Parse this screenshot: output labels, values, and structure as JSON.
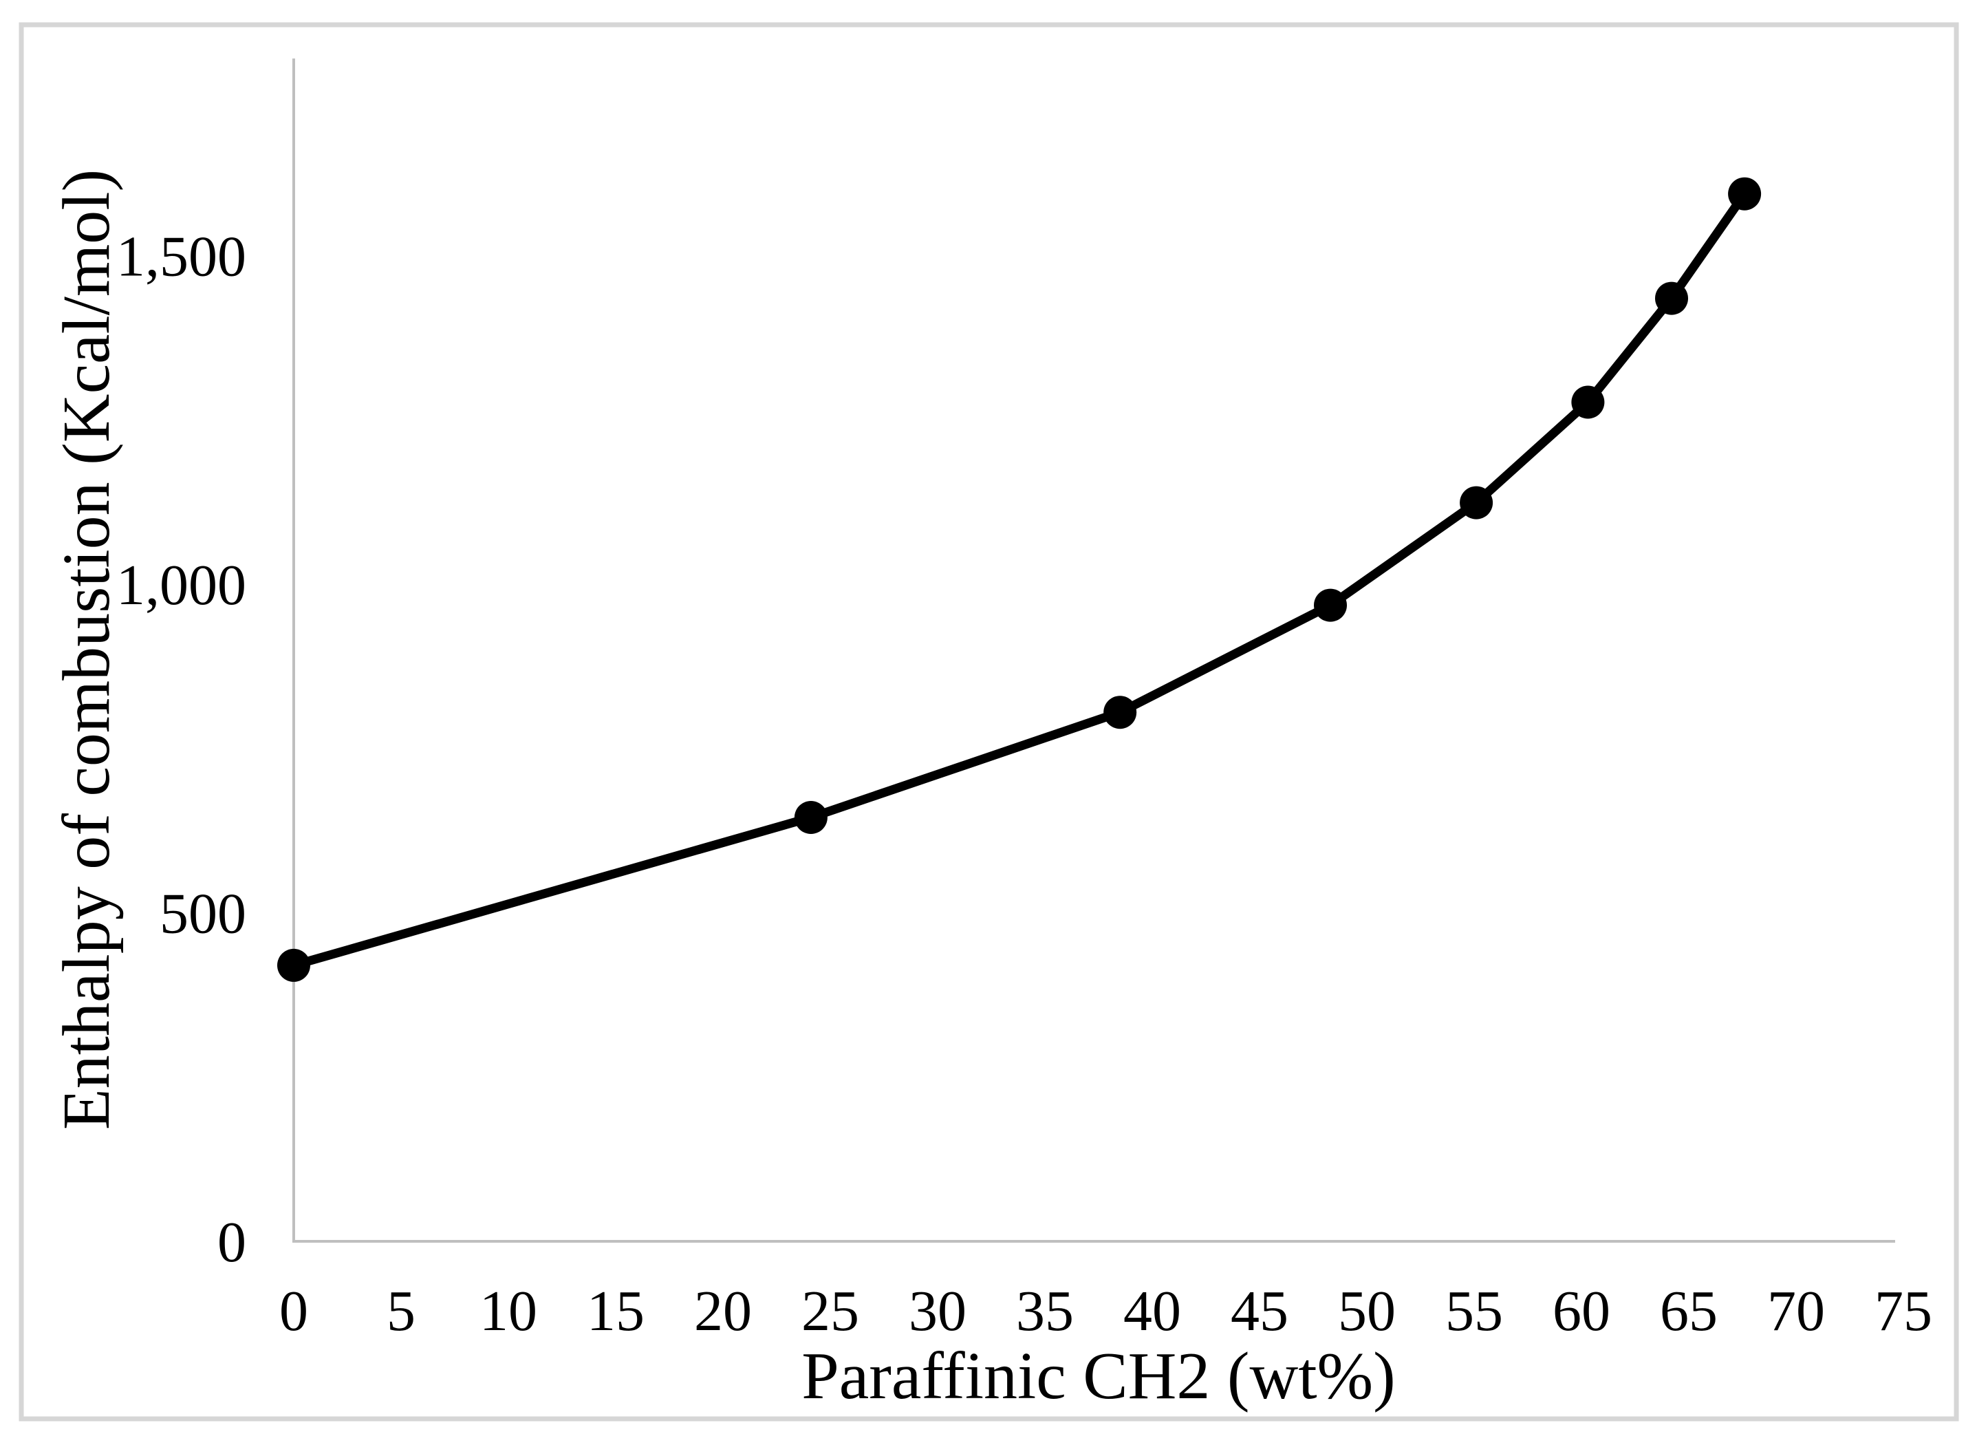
{
  "chart_data": {
    "type": "line",
    "title": "",
    "xlabel": "Paraffinic CH2 (wt%)",
    "ylabel": "Enthalpy of combustion (Kcal/mol)",
    "series": [
      {
        "name": "Enthalpy of combustion",
        "x": [
          0,
          24.1,
          38.5,
          48.3,
          55.1,
          60.3,
          64.2,
          67.6
        ],
        "y": [
          420,
          645,
          805,
          968,
          1124,
          1277,
          1435,
          1594
        ],
        "marker": "circle"
      }
    ],
    "xlim": [
      0,
      75
    ],
    "ylim": [
      0,
      1800
    ],
    "x_ticks": [
      0,
      5,
      10,
      15,
      20,
      25,
      30,
      35,
      40,
      45,
      50,
      55,
      60,
      65,
      70,
      75
    ],
    "x_tick_labels": [
      "0",
      "5",
      "10",
      "15",
      "20",
      "25",
      "30",
      "35",
      "40",
      "45",
      "50",
      "55",
      "60",
      "65",
      "70",
      "75"
    ],
    "y_ticks": [
      0,
      500,
      1000,
      1500
    ],
    "y_tick_labels": [
      "0",
      "500",
      "1,000",
      "1,500"
    ],
    "grid": false,
    "legend": null
  },
  "colors": {
    "background": "#FFFFFF",
    "axis": "#BFBFBF",
    "frame_border": "#D6D6D6",
    "series": "#000000",
    "text": "#000000"
  }
}
